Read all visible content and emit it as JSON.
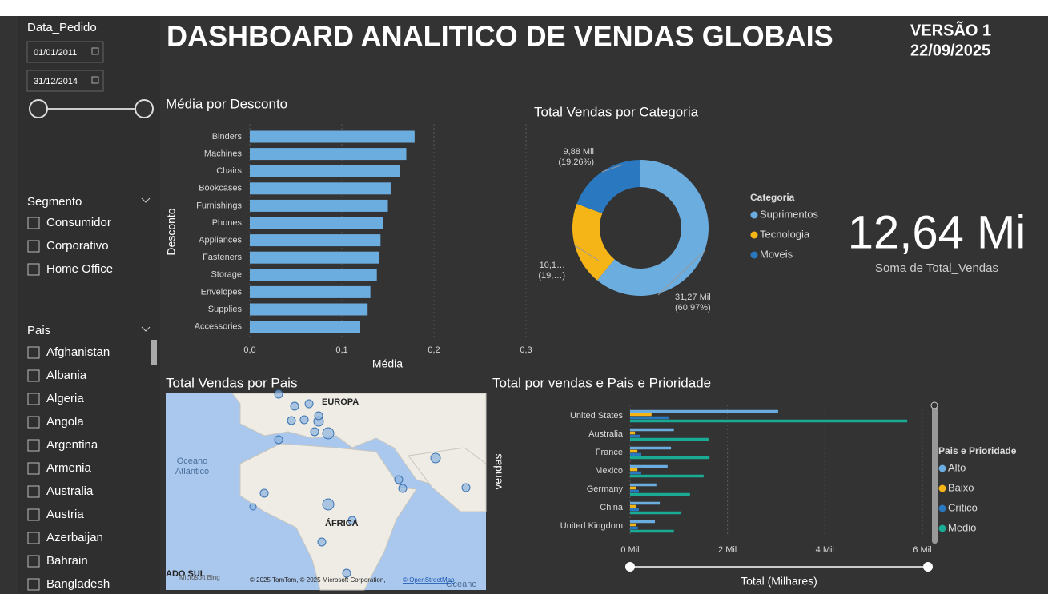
{
  "header": {
    "title": "DASHBOARD ANALITICO DE VENDAS GLOBAIS",
    "version": "VERSÃO 1",
    "date": "22/09/2025"
  },
  "filters": {
    "date": {
      "label": "Data_Pedido",
      "start": "01/01/2011",
      "end": "31/12/2014"
    },
    "segment": {
      "label": "Segmento",
      "options": [
        "Consumidor",
        "Corporativo",
        "Home Office"
      ]
    },
    "country": {
      "label": "Pais",
      "options": [
        "Afghanistan",
        "Albania",
        "Algeria",
        "Angola",
        "Argentina",
        "Armenia",
        "Australia",
        "Austria",
        "Azerbaijan",
        "Bahrain",
        "Bangladesh"
      ]
    }
  },
  "kpi": {
    "value": "12,64 Mi",
    "label": "Soma de Total_Vendas"
  },
  "map": {
    "title": "Total Vendas por Pais",
    "europe": "EUROPA",
    "ocean": [
      "Oceano",
      "Atlântico"
    ],
    "africa": "ÁFRICA",
    "south": "ADO SUL",
    "ocean2": "Oceano",
    "logo": "Microsoft Bing",
    "attribution": "© 2025 TomTom, © 2025 Microsoft Corporation,",
    "attribution_link": "© OpenStreetMap"
  },
  "chart_data": [
    {
      "type": "bar",
      "title": "Média por Desconto",
      "xlabel": "Média",
      "ylabel": "Desconto",
      "color": "#6cade0",
      "categories": [
        "Binders",
        "Machines",
        "Chairs",
        "Bookcases",
        "Furnishings",
        "Phones",
        "Appliances",
        "Fasteners",
        "Storage",
        "Envelopes",
        "Supplies",
        "Accessories"
      ],
      "values": [
        0.179,
        0.17,
        0.163,
        0.153,
        0.15,
        0.145,
        0.142,
        0.14,
        0.138,
        0.131,
        0.128,
        0.12
      ],
      "xlim": [
        0,
        0.3
      ],
      "xticks": [
        {
          "value": 0,
          "label": "0,0"
        },
        {
          "value": 0.1,
          "label": "0,1"
        },
        {
          "value": 0.2,
          "label": "0,2"
        },
        {
          "value": 0.3,
          "label": "0,3"
        }
      ],
      "grid": true
    },
    {
      "type": "donut",
      "title": "Total Vendas por Categoria",
      "legend_title": "Categoria",
      "categories": [
        "Suprimentos",
        "Tecnologia",
        "Moveis"
      ],
      "values": [
        31.27,
        10.14,
        9.88
      ],
      "colors": [
        "#6cade0",
        "#f5b517",
        "#2a78c0"
      ],
      "value_labels": [
        "31,27 Mil",
        "10,1…",
        "9,88 Mil"
      ],
      "percent_labels": [
        "(60,97%)",
        "(19,…)",
        "(19,26%)"
      ]
    },
    {
      "type": "bar",
      "title": "Total por vendas e Pais e Prioridade",
      "xlabel": "Total (Milhares)",
      "ylabel": "vendas",
      "legend_title": "Pais e Prioridade",
      "categories": [
        "United States",
        "Australia",
        "France",
        "Mexico",
        "Germany",
        "China",
        "United Kingdom"
      ],
      "series": [
        {
          "name": "Alto",
          "color": "#6cade0",
          "values": [
            3.04,
            0.9,
            0.84,
            0.77,
            0.54,
            0.61,
            0.51
          ]
        },
        {
          "name": "Baixo",
          "color": "#f5b517",
          "values": [
            0.44,
            0.1,
            0.15,
            0.15,
            0.13,
            0.12,
            0.12
          ]
        },
        {
          "name": "Critico",
          "color": "#2a78c0",
          "values": [
            0.79,
            0.21,
            0.23,
            0.23,
            0.18,
            0.18,
            0.16
          ]
        },
        {
          "name": "Medio",
          "color": "#1aab95",
          "values": [
            5.69,
            1.61,
            1.63,
            1.51,
            1.23,
            1.04,
            0.9
          ]
        }
      ],
      "xlim": [
        0,
        6.1
      ],
      "xticks": [
        {
          "value": 0,
          "label": "0 Mil"
        },
        {
          "value": 2,
          "label": "2 Mil"
        },
        {
          "value": 4,
          "label": "4 Mil"
        },
        {
          "value": 6,
          "label": "6 Mil"
        }
      ],
      "grid": true
    }
  ]
}
